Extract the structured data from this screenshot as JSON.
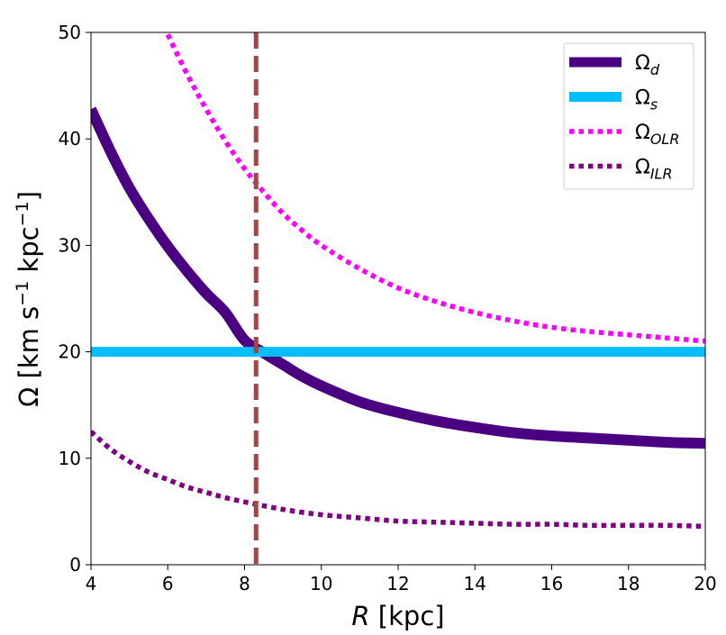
{
  "chart_data": {
    "type": "line",
    "xlabel": "R [kpc]",
    "ylabel": "Ω [km s⁻¹ kpc⁻¹]",
    "xlim": [
      4,
      20
    ],
    "ylim": [
      0,
      50
    ],
    "xticks": [
      4,
      6,
      8,
      10,
      12,
      14,
      16,
      18,
      20
    ],
    "yticks": [
      0,
      10,
      20,
      30,
      40,
      50
    ],
    "legend_position": "top-right",
    "vline": {
      "x": 8.3,
      "color": "#a0474a",
      "style": "dashed"
    },
    "series": [
      {
        "name": "Ω_d",
        "label_main": "Ω",
        "label_sub": "d",
        "color": "#4b0082",
        "style": "solid",
        "x": [
          4,
          4.5,
          5,
          5.5,
          6,
          6.5,
          7,
          7.5,
          8,
          8.5,
          9,
          9.5,
          10,
          11,
          12,
          13,
          14,
          15,
          16,
          17,
          18,
          19,
          20
        ],
        "values": [
          42.8,
          38.9,
          35.4,
          32.5,
          29.9,
          27.6,
          25.5,
          23.7,
          21.1,
          19.9,
          18.8,
          17.7,
          16.8,
          15.3,
          14.3,
          13.5,
          12.9,
          12.4,
          12.1,
          11.9,
          11.7,
          11.5,
          11.4
        ]
      },
      {
        "name": "Ω_s",
        "label_main": "Ω",
        "label_sub": "s",
        "color": "#00bfff",
        "style": "solid",
        "x": [
          4,
          20
        ],
        "values": [
          20,
          20
        ]
      },
      {
        "name": "Ω_OLR",
        "label_main": "Ω",
        "label_sub": "OLR",
        "color": "#ff00ff",
        "style": "dotted",
        "x": [
          6,
          6.5,
          7,
          7.5,
          8,
          8.5,
          9,
          9.5,
          10,
          11,
          12,
          13,
          14,
          15,
          16,
          17,
          18,
          19,
          20
        ],
        "values": [
          49.8,
          46.1,
          42.8,
          39.8,
          37.2,
          35.0,
          33.0,
          31.4,
          30.0,
          27.8,
          26.0,
          24.7,
          23.7,
          22.9,
          22.3,
          21.9,
          21.6,
          21.3,
          21.0
        ]
      },
      {
        "name": "Ω_ILR",
        "label_main": "Ω",
        "label_sub": "ILR",
        "color": "#800080",
        "style": "dotted",
        "x": [
          4,
          4.5,
          5,
          5.5,
          6,
          6.5,
          7,
          7.5,
          8,
          9,
          10,
          11,
          12,
          13,
          14,
          15,
          16,
          17,
          18,
          19,
          20
        ],
        "values": [
          12.5,
          10.9,
          9.7,
          8.7,
          8.0,
          7.3,
          6.8,
          6.3,
          5.9,
          5.2,
          4.7,
          4.4,
          4.1,
          4.0,
          3.9,
          3.8,
          3.8,
          3.7,
          3.7,
          3.7,
          3.6
        ]
      }
    ]
  }
}
